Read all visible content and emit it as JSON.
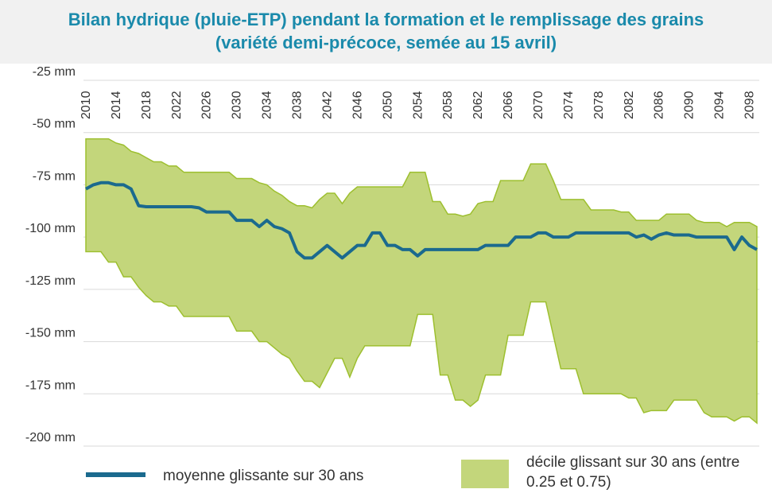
{
  "chart_data": {
    "type": "line",
    "title": "Bilan hydrique (pluie-ETP) pendant la formation et le remplissage des grains (variété demi-précoce, semée au 15 avril)",
    "x": [
      2010,
      2011,
      2012,
      2013,
      2014,
      2015,
      2016,
      2017,
      2018,
      2019,
      2020,
      2021,
      2022,
      2023,
      2024,
      2025,
      2026,
      2027,
      2028,
      2029,
      2030,
      2031,
      2032,
      2033,
      2034,
      2035,
      2036,
      2037,
      2038,
      2039,
      2040,
      2041,
      2042,
      2043,
      2044,
      2045,
      2046,
      2047,
      2048,
      2049,
      2050,
      2051,
      2052,
      2053,
      2054,
      2055,
      2056,
      2057,
      2058,
      2059,
      2060,
      2061,
      2062,
      2063,
      2064,
      2065,
      2066,
      2067,
      2068,
      2069,
      2070,
      2071,
      2072,
      2073,
      2074,
      2075,
      2076,
      2077,
      2078,
      2079,
      2080,
      2081,
      2082,
      2083,
      2084,
      2085,
      2086,
      2087,
      2088,
      2089,
      2090,
      2091,
      2092,
      2093,
      2094,
      2095,
      2096,
      2097,
      2098,
      2099
    ],
    "xlim": [
      2010,
      2099
    ],
    "xticks": [
      2010,
      2014,
      2018,
      2022,
      2026,
      2030,
      2034,
      2038,
      2042,
      2046,
      2050,
      2054,
      2058,
      2062,
      2066,
      2070,
      2074,
      2078,
      2082,
      2086,
      2090,
      2094,
      2098
    ],
    "ylim": [
      -200,
      -25
    ],
    "yticks": [
      {
        "value": -25,
        "label": "-25 mm"
      },
      {
        "value": -50,
        "label": "-50 mm"
      },
      {
        "value": -75,
        "label": "-75 mm"
      },
      {
        "value": -100,
        "label": "-100 mm"
      },
      {
        "value": -125,
        "label": "-125 mm"
      },
      {
        "value": -150,
        "label": "-150 mm"
      },
      {
        "value": -175,
        "label": "-175 mm"
      },
      {
        "value": -200,
        "label": "-200 mm"
      }
    ],
    "grid": true,
    "series": [
      {
        "name": "moyenne glissante sur 30 ans",
        "color": "#1b6a8e",
        "values": [
          -77,
          -75,
          -74,
          -74,
          -75,
          -75,
          -77,
          -85,
          -85.5,
          -85.5,
          -85.5,
          -85.5,
          -85.5,
          -85.5,
          -85.5,
          -86,
          -88,
          -88,
          -88,
          -88,
          -92,
          -92,
          -92,
          -95,
          -92,
          -95,
          -96,
          -98,
          -107,
          -110,
          -110,
          -107,
          -104,
          -107,
          -110,
          -107,
          -104,
          -104,
          -98,
          -98,
          -104,
          -104,
          -106,
          -106,
          -109,
          -106,
          -106,
          -106,
          -106,
          -106,
          -106,
          -106,
          -106,
          -104,
          -104,
          -104,
          -104,
          -100,
          -100,
          -100,
          -98,
          -98,
          -100,
          -100,
          -100,
          -98,
          -98,
          -98,
          -98,
          -98,
          -98,
          -98,
          -98,
          -100,
          -99,
          -101,
          -99,
          -98,
          -99,
          -99,
          -99,
          -100,
          -100,
          -100,
          -100,
          -100,
          -106,
          -100,
          -104,
          -106
        ]
      },
      {
        "name": "décile glissant sur 30 ans (entre 0.25 et 0.75)",
        "color": "#c3d67b",
        "edge_color": "#9dbf2f",
        "upper": [
          -53,
          -53,
          -53,
          -53,
          -55,
          -56,
          -59,
          -60,
          -62,
          -64,
          -64,
          -66,
          -66,
          -69,
          -69,
          -69,
          -69,
          -69,
          -69,
          -69,
          -72,
          -72,
          -72,
          -74,
          -75,
          -78,
          -80,
          -83,
          -85,
          -85,
          -86,
          -82,
          -79,
          -79,
          -84,
          -79,
          -76,
          -76,
          -76,
          -76,
          -76,
          -76,
          -76,
          -69,
          -69,
          -69,
          -83,
          -83,
          -89,
          -89,
          -90,
          -89,
          -84,
          -83,
          -83,
          -73,
          -73,
          -73,
          -73,
          -65,
          -65,
          -65,
          -73,
          -82,
          -82,
          -82,
          -82,
          -87,
          -87,
          -87,
          -87,
          -88,
          -88,
          -92,
          -92,
          -92,
          -92,
          -89,
          -89,
          -89,
          -89,
          -92,
          -93,
          -93,
          -93,
          -95,
          -93,
          -93,
          -93,
          -95
        ],
        "lower": [
          -107,
          -107,
          -107,
          -112,
          -112,
          -119,
          -119,
          -124,
          -128,
          -131,
          -131,
          -133,
          -133,
          -138,
          -138,
          -138,
          -138,
          -138,
          -138,
          -138,
          -145,
          -145,
          -145,
          -150,
          -150,
          -153,
          -156,
          -158,
          -164,
          -169,
          -169,
          -172,
          -165,
          -158,
          -158,
          -167,
          -158,
          -152,
          -152,
          -152,
          -152,
          -152,
          -152,
          -152,
          -137,
          -137,
          -137,
          -166,
          -166,
          -178,
          -178,
          -181,
          -178,
          -166,
          -166,
          -166,
          -147,
          -147,
          -147,
          -131,
          -131,
          -131,
          -147,
          -163,
          -163,
          -163,
          -175,
          -175,
          -175,
          -175,
          -175,
          -175,
          -177,
          -177,
          -184,
          -183,
          -183,
          -183,
          -178,
          -178,
          -178,
          -178,
          -184,
          -186,
          -186,
          -186,
          -188,
          -186,
          -186,
          -189
        ]
      }
    ]
  }
}
